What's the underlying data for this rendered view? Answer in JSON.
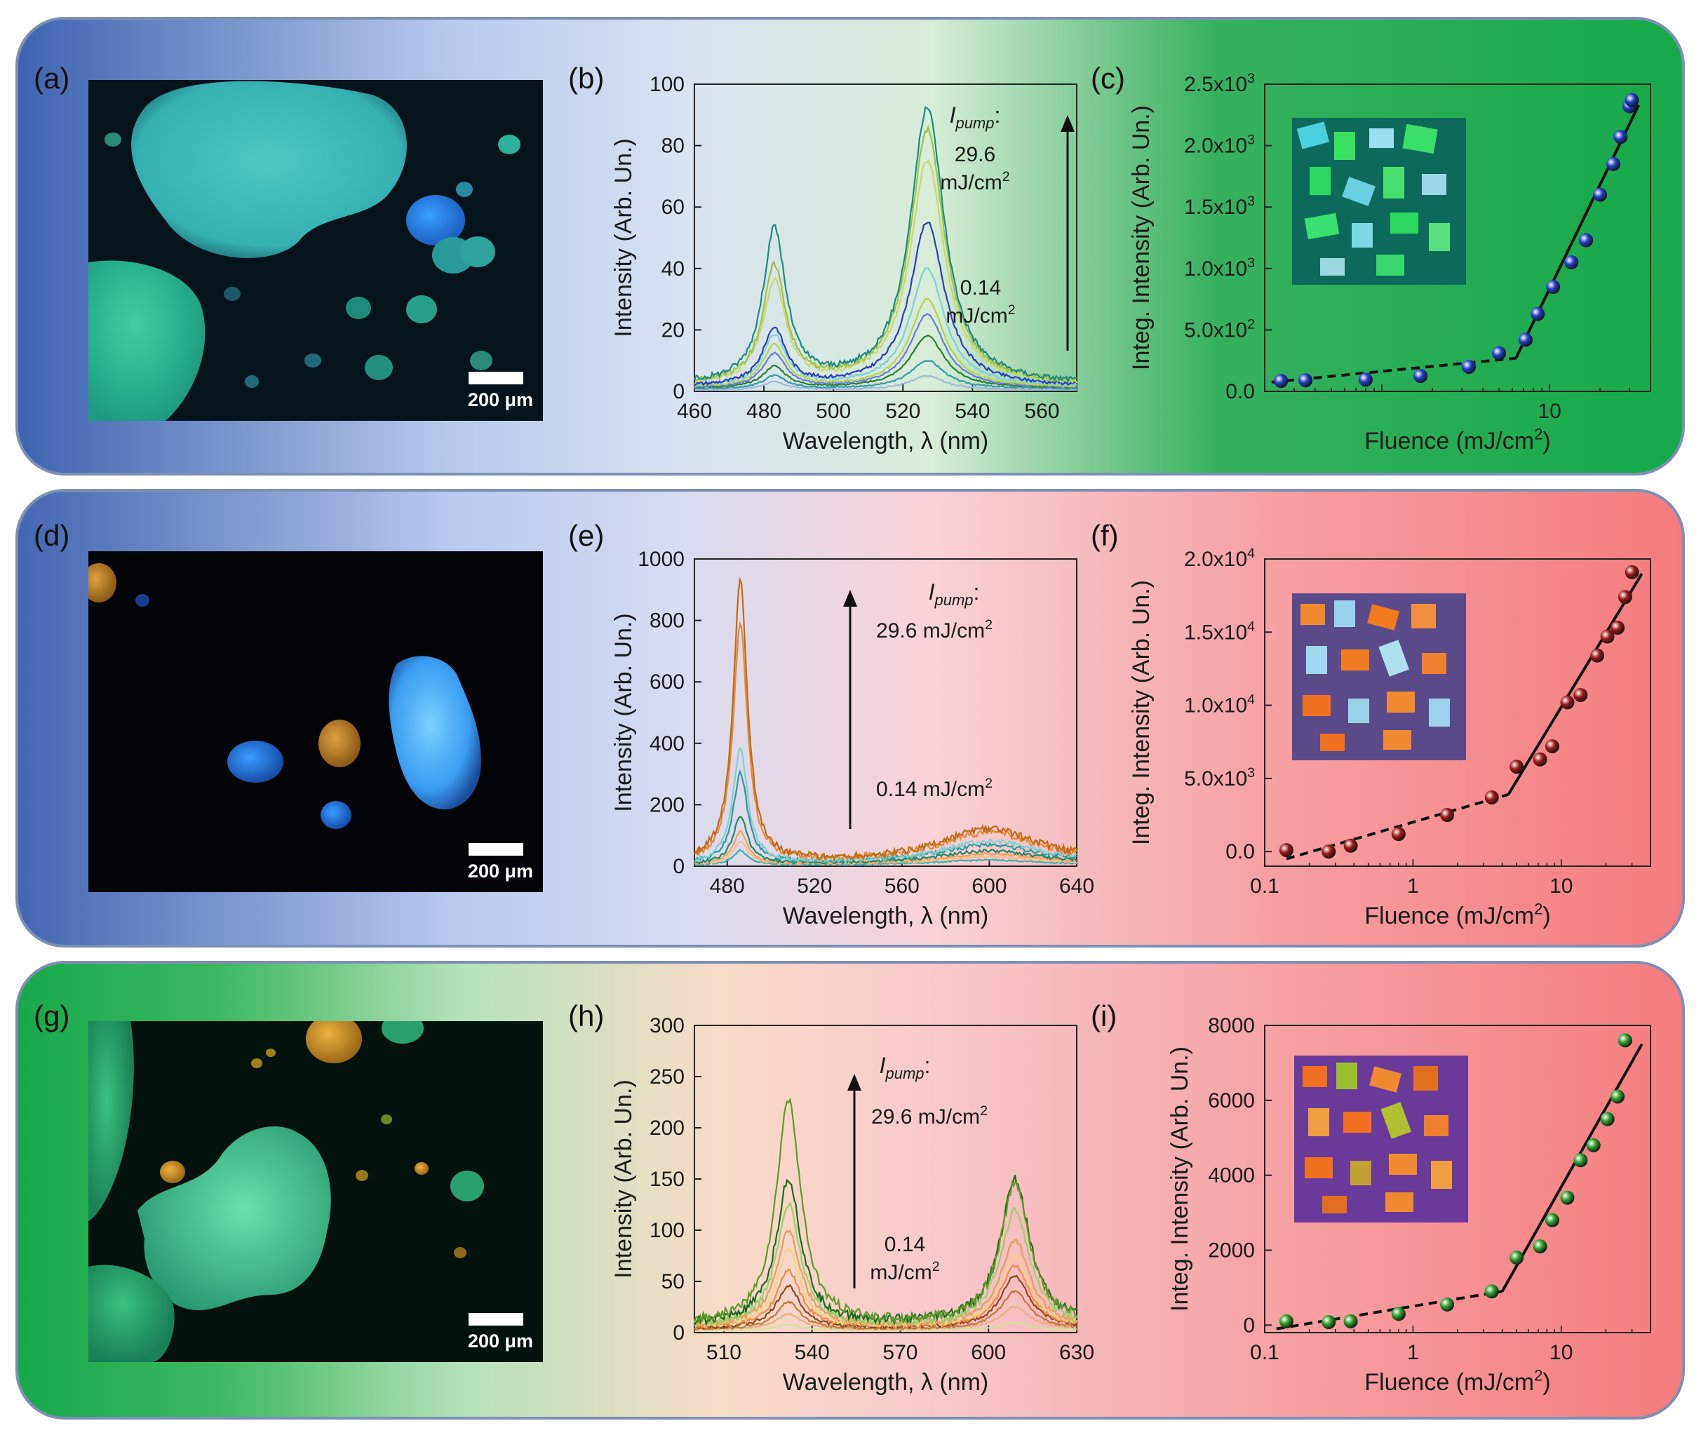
{
  "labels": {
    "a": "(a)",
    "b": "(b)",
    "c": "(c)",
    "d": "(d)",
    "e": "(e)",
    "f": "(f)",
    "g": "(g)",
    "h": "(h)",
    "i": "(i)"
  },
  "scale_text": "200 μm",
  "images": [
    {
      "panel": "a",
      "description_name": "microscope-image-green-blue-crystals"
    },
    {
      "panel": "d",
      "description_name": "microscope-image-blue-crystal"
    },
    {
      "panel": "g",
      "description_name": "microscope-image-green-crystals"
    }
  ],
  "chart_data": [
    {
      "panel": "b",
      "type": "line",
      "xlabel": "Wavelength, λ (nm)",
      "ylabel": "Intensity (Arb. Un.)",
      "xlim": [
        460,
        570
      ],
      "ylim": [
        0,
        100
      ],
      "xticks": [
        460,
        480,
        500,
        520,
        540,
        560
      ],
      "yticks": [
        0,
        20,
        40,
        60,
        80,
        100
      ],
      "annotation": {
        "top_label": "I",
        "top_sub": "pump",
        "top_colon": ":",
        "top_value": "29.6",
        "top_unit": "mJ/cm",
        "bottom_value": "0.14",
        "bottom_unit": "mJ/cm",
        "sup": "2"
      },
      "peaks": [
        {
          "center": 483,
          "width": 4
        },
        {
          "center": 527,
          "width": 6
        }
      ],
      "series": [
        {
          "color": "#1f8a83",
          "peak1": 52,
          "peak2": 92,
          "base": 2
        },
        {
          "color": "#9ec04a",
          "peak1": 40,
          "peak2": 85,
          "base": 2
        },
        {
          "color": "#c8d86a",
          "peak1": 35,
          "peak2": 75,
          "base": 2
        },
        {
          "color": "#2f3db8",
          "peak1": 20,
          "peak2": 55,
          "base": 1.5
        },
        {
          "color": "#7fd0d8",
          "peak1": 18,
          "peak2": 40,
          "base": 1.5
        },
        {
          "color": "#b7d24c",
          "peak1": 15,
          "peak2": 30,
          "base": 1.2
        },
        {
          "color": "#6b7bdc",
          "peak1": 12,
          "peak2": 25,
          "base": 1
        },
        {
          "color": "#2b7f32",
          "peak1": 8,
          "peak2": 18,
          "base": 1
        },
        {
          "color": "#3a9aa8",
          "peak1": 5,
          "peak2": 10,
          "base": 0.8
        },
        {
          "color": "#9fb8d8",
          "peak1": 3,
          "peak2": 5,
          "base": 0.5
        }
      ]
    },
    {
      "panel": "c",
      "type": "scatter",
      "xlabel": "Fluence (mJ/cm",
      "xlabel_sup": "2",
      "xlabel_end": ")",
      "ylabel": "Integ. Intensity (Arb. Un.)",
      "xscale": "log",
      "xlim": [
        0.2,
        40
      ],
      "ylim": [
        0,
        2500
      ],
      "xticks": [
        {
          "v": 10,
          "label": "10"
        }
      ],
      "yticks": [
        {
          "v": 0,
          "label": "0.0"
        },
        {
          "v": 500,
          "label": "5.0x10",
          "sup": "2"
        },
        {
          "v": 1000,
          "label": "1.0x10",
          "sup": "3"
        },
        {
          "v": 1500,
          "label": "1.5x10",
          "sup": "3"
        },
        {
          "v": 2000,
          "label": "2.0x10",
          "sup": "3"
        },
        {
          "v": 2500,
          "label": "2.5x10",
          "sup": "3"
        }
      ],
      "x": [
        0.25,
        0.35,
        0.8,
        1.7,
        3.3,
        5,
        7.2,
        8.5,
        10.5,
        13.5,
        16.5,
        20,
        24,
        26.5,
        30,
        31
      ],
      "y": [
        85,
        90,
        95,
        125,
        200,
        310,
        420,
        630,
        850,
        1050,
        1230,
        1600,
        1850,
        2070,
        2320,
        2370
      ],
      "fit_dashed": [
        [
          0.22,
          75
        ],
        [
          6.3,
          270
        ]
      ],
      "fit_solid": [
        [
          6.3,
          270
        ],
        [
          34,
          2330
        ]
      ],
      "marker_color": "#1f3fc8"
    },
    {
      "panel": "e",
      "type": "line",
      "xlabel": "Wavelength, λ (nm)",
      "ylabel": "Intensity (Arb. Un.)",
      "xlim": [
        465,
        640
      ],
      "ylim": [
        0,
        1000
      ],
      "xticks": [
        480,
        520,
        560,
        600,
        640
      ],
      "yticks": [
        0,
        200,
        400,
        600,
        800,
        1000
      ],
      "annotation": {
        "top_label": "I",
        "top_sub": "pump",
        "top_colon": ":",
        "top_value": "29.6 mJ/cm",
        "bottom_value": "0.14 mJ/cm",
        "sup": "2"
      },
      "peaks": [
        {
          "center": 486,
          "width": 4
        },
        {
          "center": 600,
          "width": 28
        }
      ],
      "series": [
        {
          "color": "#c06a14",
          "peak1": 925,
          "peak2": 120,
          "base": 10
        },
        {
          "color": "#e08a3a",
          "peak1": 780,
          "peak2": 110,
          "base": 10
        },
        {
          "color": "#7fd0d0",
          "peak1": 380,
          "peak2": 80,
          "base": 8
        },
        {
          "color": "#2a9a9a",
          "peak1": 300,
          "peak2": 70,
          "base": 8
        },
        {
          "color": "#1f8a6a",
          "peak1": 160,
          "peak2": 50,
          "base": 6
        },
        {
          "color": "#f0a060",
          "peak1": 110,
          "peak2": 40,
          "base": 6
        },
        {
          "color": "#f5c08a",
          "peak1": 80,
          "peak2": 30,
          "base": 5
        },
        {
          "color": "#3fb0b0",
          "peak1": 50,
          "peak2": 20,
          "base": 4
        }
      ]
    },
    {
      "panel": "f",
      "type": "scatter",
      "xlabel": "Fluence (mJ/cm",
      "xlabel_sup": "2",
      "xlabel_end": ")",
      "ylabel": "Integ. Intensity (Arb. Un.)",
      "xscale": "log",
      "xlim": [
        0.1,
        40
      ],
      "ylim": [
        -1000,
        20000
      ],
      "xticks": [
        {
          "v": 0.1,
          "label": "0.1"
        },
        {
          "v": 1,
          "label": "1"
        },
        {
          "v": 10,
          "label": "10"
        }
      ],
      "yticks": [
        {
          "v": 0,
          "label": "0.0"
        },
        {
          "v": 5000,
          "label": "5.0x10",
          "sup": "3"
        },
        {
          "v": 10000,
          "label": "1.0x10",
          "sup": "4"
        },
        {
          "v": 15000,
          "label": "1.5x10",
          "sup": "4"
        },
        {
          "v": 20000,
          "label": "2.0x10",
          "sup": "4"
        }
      ],
      "x": [
        0.14,
        0.27,
        0.38,
        0.8,
        1.7,
        3.4,
        5,
        7.2,
        8.7,
        11,
        13.5,
        17.5,
        20.5,
        24,
        27,
        30
      ],
      "y": [
        100,
        0,
        400,
        1200,
        2500,
        3700,
        5800,
        6300,
        7200,
        10200,
        10700,
        13400,
        14700,
        15300,
        17400,
        19100
      ],
      "fit_dashed": [
        [
          0.14,
          -500
        ],
        [
          4.4,
          3900
        ]
      ],
      "fit_solid": [
        [
          4.4,
          3900
        ],
        [
          35,
          19000
        ]
      ],
      "marker_color": "#9e1a1a"
    },
    {
      "panel": "h",
      "type": "line",
      "xlabel": "Wavelength, λ (nm)",
      "ylabel": "Intensity (Arb. Un.)",
      "xlim": [
        500,
        630
      ],
      "ylim": [
        0,
        300
      ],
      "xticks": [
        510,
        540,
        570,
        600,
        630
      ],
      "yticks": [
        0,
        50,
        100,
        150,
        200,
        250,
        300
      ],
      "annotation": {
        "top_label": "I",
        "top_sub": "pump",
        "top_colon": ":",
        "top_value": "29.6 mJ/cm",
        "bottom_value": "0.14",
        "bottom_unit": "mJ/cm",
        "sup": "2"
      },
      "peaks": [
        {
          "center": 532,
          "width": 5
        },
        {
          "center": 609,
          "width": 6
        }
      ],
      "series": [
        {
          "color": "#5f9a2a",
          "peak1": 228,
          "peak2": 145,
          "base": 8
        },
        {
          "color": "#1e6a1e",
          "peak1": 150,
          "peak2": 150,
          "base": 8
        },
        {
          "color": "#9ccf6a",
          "peak1": 125,
          "peak2": 120,
          "base": 6
        },
        {
          "color": "#e0a060",
          "peak1": 100,
          "peak2": 90,
          "base": 6
        },
        {
          "color": "#f6d37a",
          "peak1": 80,
          "peak2": 75,
          "base": 5
        },
        {
          "color": "#f08a4a",
          "peak1": 60,
          "peak2": 65,
          "base": 5
        },
        {
          "color": "#8a4a1a",
          "peak1": 45,
          "peak2": 55,
          "base": 4
        },
        {
          "color": "#c07a3a",
          "peak1": 30,
          "peak2": 40,
          "base": 3
        },
        {
          "color": "#e8b080",
          "peak1": 18,
          "peak2": 25,
          "base": 3
        },
        {
          "color": "#d0e0a0",
          "peak1": 8,
          "peak2": 10,
          "base": 2
        }
      ]
    },
    {
      "panel": "i",
      "type": "scatter",
      "xlabel": "Fluence (mJ/cm",
      "xlabel_sup": "2",
      "xlabel_end": ")",
      "ylabel": "Integ. Intensity (Arb. Un.)",
      "xscale": "log",
      "xlim": [
        0.1,
        40
      ],
      "ylim": [
        -200,
        8000
      ],
      "xticks": [
        {
          "v": 0.1,
          "label": "0.1"
        },
        {
          "v": 1,
          "label": "1"
        },
        {
          "v": 10,
          "label": "10"
        }
      ],
      "yticks": [
        {
          "v": 0,
          "label": "0"
        },
        {
          "v": 2000,
          "label": "2000"
        },
        {
          "v": 4000,
          "label": "4000"
        },
        {
          "v": 6000,
          "label": "6000"
        },
        {
          "v": 8000,
          "label": "8000"
        }
      ],
      "x": [
        0.14,
        0.27,
        0.38,
        0.8,
        1.7,
        3.4,
        5,
        7.2,
        8.7,
        11,
        13.5,
        16.5,
        20.5,
        24,
        27
      ],
      "y": [
        100,
        80,
        100,
        300,
        550,
        900,
        1800,
        2100,
        2800,
        3400,
        4400,
        4800,
        5500,
        6100,
        7600
      ],
      "fit_dashed": [
        [
          0.12,
          -100
        ],
        [
          4,
          900
        ]
      ],
      "fit_solid": [
        [
          4,
          900
        ],
        [
          35,
          7500
        ]
      ],
      "marker_color": "#2ca02c"
    }
  ]
}
